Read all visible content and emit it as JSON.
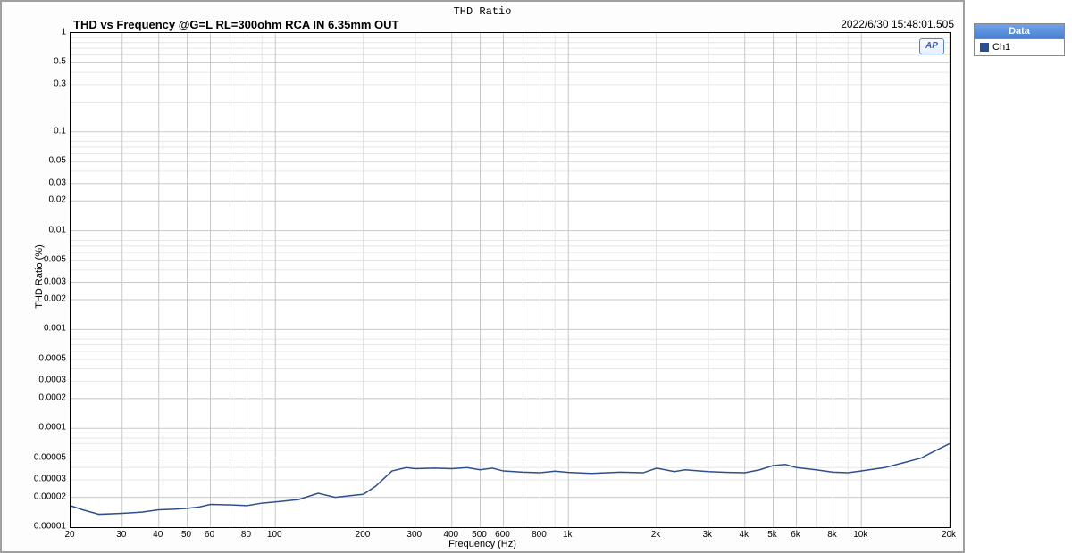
{
  "chart": {
    "type": "line",
    "header_title": "THD Ratio",
    "subtitle": "THD vs Frequency @G=L RL=300ohm RCA IN 6.35mm OUT",
    "timestamp": "2022/6/30 15:48:01.505",
    "y_axis_label": "THD Ratio (%)",
    "x_axis_label": "Frequency (Hz)",
    "background_color": "#ffffff",
    "grid_major_color": "#c8c8c8",
    "grid_minor_color": "#e6e6e6",
    "line_color": "#2e4f8f",
    "line_width": 1.5,
    "x_scale": "log",
    "y_scale": "log",
    "xlim": [
      20,
      20000
    ],
    "ylim": [
      1e-05,
      1
    ],
    "x_ticks_major": [
      20,
      30,
      40,
      50,
      60,
      80,
      100,
      200,
      300,
      400,
      500,
      600,
      800,
      1000,
      2000,
      3000,
      4000,
      5000,
      6000,
      8000,
      10000,
      20000
    ],
    "x_tick_labels": [
      "20",
      "30",
      "40",
      "50",
      "60",
      "80",
      "100",
      "200",
      "300",
      "400",
      "500",
      "600",
      "800",
      "1k",
      "2k",
      "3k",
      "4k",
      "5k",
      "6k",
      "8k",
      "10k",
      "20k"
    ],
    "y_ticks_major": [
      1e-05,
      2e-05,
      3e-05,
      5e-05,
      0.0001,
      0.0002,
      0.0003,
      0.0005,
      0.001,
      0.002,
      0.003,
      0.005,
      0.01,
      0.02,
      0.03,
      0.05,
      0.1,
      0.3,
      0.5,
      1
    ],
    "y_tick_labels": [
      "0.00001",
      "0.00002",
      "0.00003",
      "0.00005",
      "0.0001",
      "0.0002",
      "0.0003",
      "0.0005",
      "0.001",
      "0.002",
      "0.003",
      "0.005",
      "0.01",
      "0.02",
      "0.03",
      "0.05",
      "0.1",
      "0.3",
      "0.5",
      "1"
    ],
    "series": [
      {
        "name": "Ch1",
        "color": "#2e4f8f",
        "x": [
          20,
          22,
          25,
          30,
          35,
          40,
          45,
          50,
          55,
          60,
          70,
          80,
          90,
          100,
          120,
          140,
          160,
          180,
          200,
          220,
          250,
          280,
          300,
          350,
          400,
          450,
          500,
          550,
          600,
          700,
          800,
          900,
          1000,
          1200,
          1500,
          1800,
          2000,
          2300,
          2500,
          3000,
          3500,
          4000,
          4500,
          5000,
          5500,
          6000,
          7000,
          8000,
          9000,
          10000,
          12000,
          14000,
          16000,
          18000,
          20000
        ],
        "y": [
          1.65e-05,
          1.5e-05,
          1.35e-05,
          1.38e-05,
          1.42e-05,
          1.5e-05,
          1.52e-05,
          1.55e-05,
          1.6e-05,
          1.7e-05,
          1.68e-05,
          1.65e-05,
          1.75e-05,
          1.8e-05,
          1.9e-05,
          2.2e-05,
          2e-05,
          2.08e-05,
          2.15e-05,
          2.6e-05,
          3.7e-05,
          4e-05,
          3.9e-05,
          3.95e-05,
          3.9e-05,
          4e-05,
          3.8e-05,
          3.95e-05,
          3.7e-05,
          3.6e-05,
          3.55e-05,
          3.68e-05,
          3.58e-05,
          3.5e-05,
          3.6e-05,
          3.55e-05,
          3.95e-05,
          3.65e-05,
          3.8e-05,
          3.65e-05,
          3.58e-05,
          3.55e-05,
          3.8e-05,
          4.2e-05,
          4.3e-05,
          4e-05,
          3.8e-05,
          3.6e-05,
          3.55e-05,
          3.7e-05,
          4e-05,
          4.5e-05,
          5e-05,
          6e-05,
          7e-05
        ]
      }
    ],
    "ap_badge": "AP"
  },
  "legend": {
    "header": "Data",
    "items": [
      {
        "label": "Ch1",
        "color": "#2e4f8f"
      }
    ]
  }
}
